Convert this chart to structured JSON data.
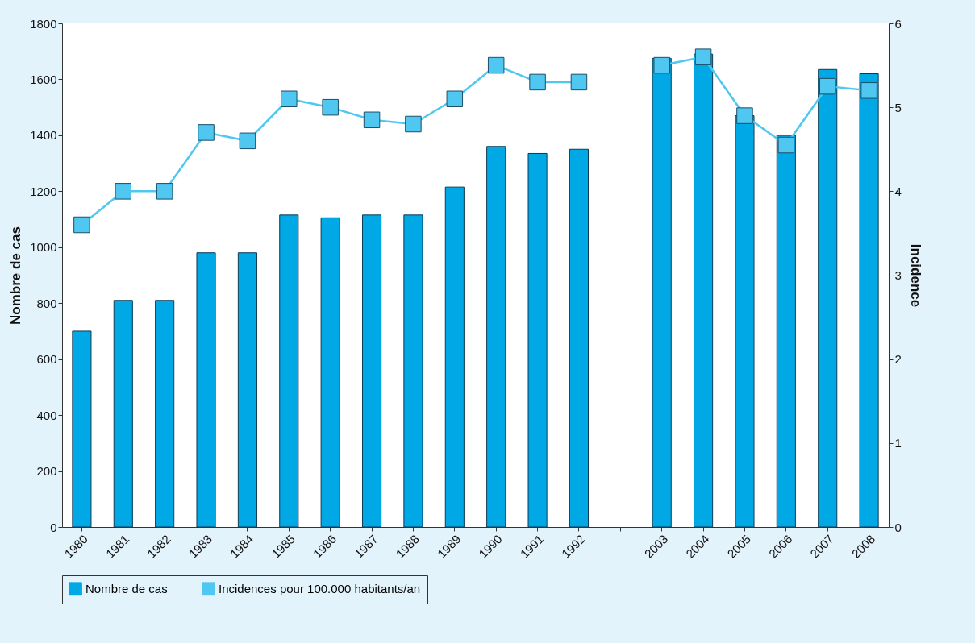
{
  "chart_data": {
    "type": "bar",
    "ylabel": "Nombre de cas",
    "y2label": "Incidence",
    "categories": [
      "1980",
      "1981",
      "1982",
      "1983",
      "1984",
      "1985",
      "1986",
      "1987",
      "1988",
      "1989",
      "1990",
      "1991",
      "1992",
      null,
      "2003",
      "2004",
      "2005",
      "2006",
      "2007",
      "2008"
    ],
    "series": [
      {
        "name": "Nombre de cas",
        "color": "#00a9e6",
        "values": [
          700,
          810,
          810,
          980,
          980,
          1115,
          1105,
          1115,
          1115,
          1215,
          1360,
          1335,
          1350,
          null,
          1675,
          1690,
          1470,
          1400,
          1635,
          1620
        ]
      },
      {
        "name": "Incidences pour 100.000 habitants/an",
        "type": "line",
        "axis": "y2",
        "color": "#4fc7f1",
        "values": [
          3.6,
          4.0,
          4.0,
          4.7,
          4.6,
          5.1,
          5.0,
          4.85,
          4.8,
          5.1,
          5.5,
          5.3,
          5.3,
          null,
          5.5,
          5.6,
          4.9,
          4.55,
          5.25,
          5.2
        ]
      }
    ],
    "ylim": [
      0,
      1800
    ],
    "yticks": [
      0,
      200,
      400,
      600,
      800,
      1000,
      1200,
      1400,
      1600,
      1800
    ],
    "y2lim": [
      0,
      6
    ],
    "y2ticks": [
      0,
      1,
      2,
      3,
      4,
      5,
      6
    ],
    "marker": "square",
    "legend": "bottom",
    "grid": false
  }
}
